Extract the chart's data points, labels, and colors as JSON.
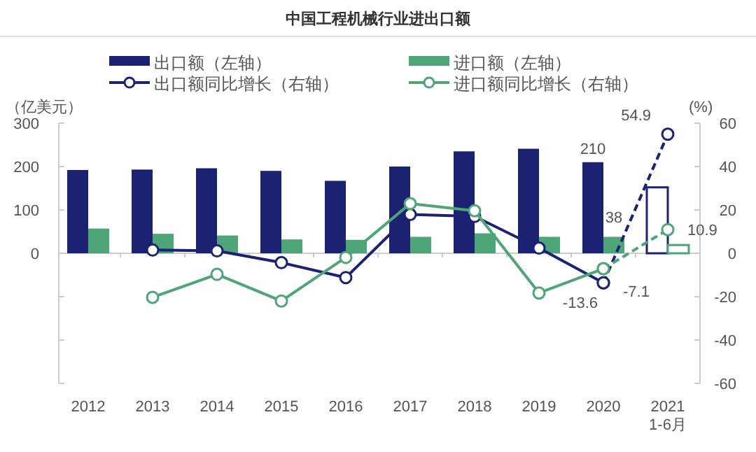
{
  "chart_data": {
    "type": "bar",
    "title": "中国工程机械行业进出口额",
    "categories": [
      "2012",
      "2013",
      "2014",
      "2015",
      "2016",
      "2017",
      "2018",
      "2019",
      "2020",
      "2021\n1-6月"
    ],
    "ylabel": "（亿美元）",
    "y2label": "(%)",
    "ylim": [
      -300,
      300
    ],
    "yticks": [
      {
        "value": -300,
        "label": null
      },
      {
        "value": -200,
        "label": null
      },
      {
        "value": -100,
        "label": null
      },
      0,
      100,
      200,
      300
    ],
    "y2lim": [
      -60,
      60
    ],
    "y2ticks": [
      -60,
      -40,
      -20,
      0,
      20,
      40,
      60
    ],
    "legend": "top",
    "series": [
      {
        "name": "出口额（左轴）",
        "color": "#1b2272",
        "colors": [
          "#1b2272",
          "#1b2272",
          "#1b2272",
          "#1b2272",
          "#1b2272",
          "#1b2272",
          "#1b2272",
          "#1b2272",
          "#1b2272",
          "#ffffff"
        ],
        "values": [
          192,
          193,
          196,
          190,
          167,
          200,
          235,
          241,
          210,
          152
        ],
        "value_labels": [
          null,
          null,
          null,
          null,
          null,
          null,
          null,
          null,
          "210",
          null
        ]
      },
      {
        "name": "进口额（左轴）",
        "color": "#4ea577",
        "colors": [
          "#4ea577",
          "#4ea577",
          "#4ea577",
          "#4ea577",
          "#4ea577",
          "#4ea577",
          "#4ea577",
          "#4ea577",
          "#4ea577",
          "#ffffff"
        ],
        "values": [
          57,
          45,
          41,
          32,
          31,
          38,
          46,
          38,
          38,
          19
        ],
        "value_labels": [
          null,
          null,
          null,
          null,
          null,
          null,
          null,
          null,
          "38",
          null
        ]
      },
      {
        "name": "出口额同比增长（右轴）",
        "type": "line",
        "axis": "y2",
        "color": "#1b2272",
        "marker": "circle",
        "line_style": "solid",
        "values": [
          null,
          1.5,
          1.1,
          -4.3,
          -11.2,
          17.9,
          17.0,
          2.4,
          -13.6,
          null
        ],
        "value_labels": [
          null,
          null,
          null,
          null,
          null,
          null,
          null,
          null,
          "-13.6",
          null
        ]
      },
      {
        "name": "进口额同比增长（右轴）",
        "type": "line",
        "axis": "y2",
        "color": "#4ea577",
        "marker": "circle",
        "line_style": "solid",
        "values": [
          null,
          -20.3,
          -9.7,
          -22.0,
          -1.9,
          22.9,
          19.6,
          -18.3,
          -7.1,
          null
        ],
        "value_labels": [
          null,
          null,
          null,
          null,
          null,
          null,
          null,
          null,
          "-7.1",
          null
        ]
      },
      {
        "type": "line",
        "axis": "y2",
        "color": "#1b2272",
        "marker": "circle",
        "line_style": "dashed",
        "values": [
          null,
          null,
          null,
          null,
          null,
          null,
          null,
          null,
          -13.6,
          54.9
        ],
        "value_labels": [
          null,
          null,
          null,
          null,
          null,
          null,
          null,
          null,
          null,
          "54.9"
        ]
      },
      {
        "type": "line",
        "axis": "y2",
        "color": "#4ea577",
        "marker": "circle",
        "line_style": "dashed",
        "values": [
          null,
          null,
          null,
          null,
          null,
          null,
          null,
          null,
          -7.1,
          10.9
        ],
        "value_labels": [
          null,
          null,
          null,
          null,
          null,
          null,
          null,
          null,
          null,
          "10.9"
        ]
      }
    ]
  }
}
